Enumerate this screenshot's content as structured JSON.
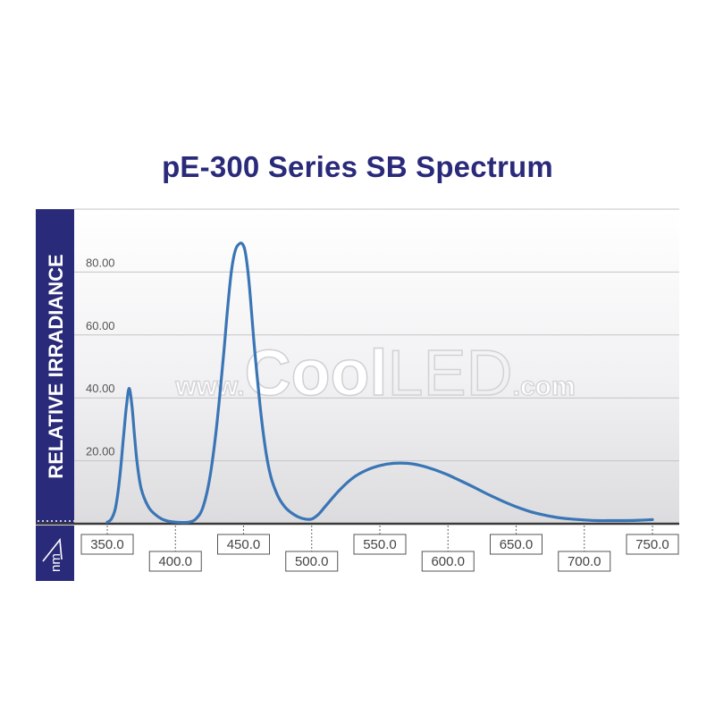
{
  "chart_data": {
    "type": "line",
    "title": "pE-300 Series SB Spectrum",
    "ylabel": "RELATIVE IRRADIANCE",
    "xlabel": "nm",
    "xlim": [
      350,
      750
    ],
    "ylim": [
      0,
      100
    ],
    "y_ticks": [
      "20.00",
      "40.00",
      "60.00",
      "80.00"
    ],
    "x_ticks": [
      "350.0",
      "400.0",
      "450.0",
      "500.0",
      "550.0",
      "600.0",
      "650.0",
      "700.0",
      "750.0"
    ],
    "grid": true,
    "watermark": {
      "prefix": "www.",
      "brand_a": "Cool",
      "brand_b": "LED",
      "suffix": ".com"
    },
    "colors": {
      "line": "#3a75b5",
      "panel": "#2a2a7a",
      "title": "#2a2a7a"
    },
    "series": [
      {
        "x": [
          350,
          353,
          356,
          359,
          362,
          364,
          366,
          368,
          370,
          372,
          375,
          380,
          385,
          390,
          395,
          400,
          405,
          410,
          415,
          420,
          425,
          430,
          435,
          438,
          441,
          444,
          447,
          449,
          451,
          453,
          455,
          458,
          462,
          466,
          470,
          475,
          480,
          485,
          490,
          495,
          500,
          505,
          510,
          520,
          530,
          540,
          550,
          560,
          570,
          580,
          590,
          600,
          610,
          620,
          630,
          640,
          650,
          660,
          670,
          680,
          690,
          700,
          710,
          720,
          730,
          740,
          750
        ],
        "y": [
          0.5,
          1.5,
          5,
          14,
          28,
          37,
          43,
          38,
          28,
          19,
          11,
          5.5,
          3,
          1.5,
          0.8,
          0.5,
          0.4,
          0.5,
          1.5,
          5,
          14,
          30,
          52,
          67,
          80,
          87,
          89,
          89,
          87,
          81,
          72,
          56,
          38,
          24,
          15,
          9,
          5.5,
          3.5,
          2.2,
          1.5,
          1.5,
          3,
          5.5,
          10.5,
          14.5,
          17,
          18.5,
          19.2,
          19.2,
          18.5,
          17.2,
          15.5,
          13.5,
          11.4,
          9.2,
          7.2,
          5.4,
          3.9,
          2.8,
          2,
          1.5,
          1.2,
          1,
          1,
          1,
          1.1,
          1.3
        ]
      }
    ]
  }
}
